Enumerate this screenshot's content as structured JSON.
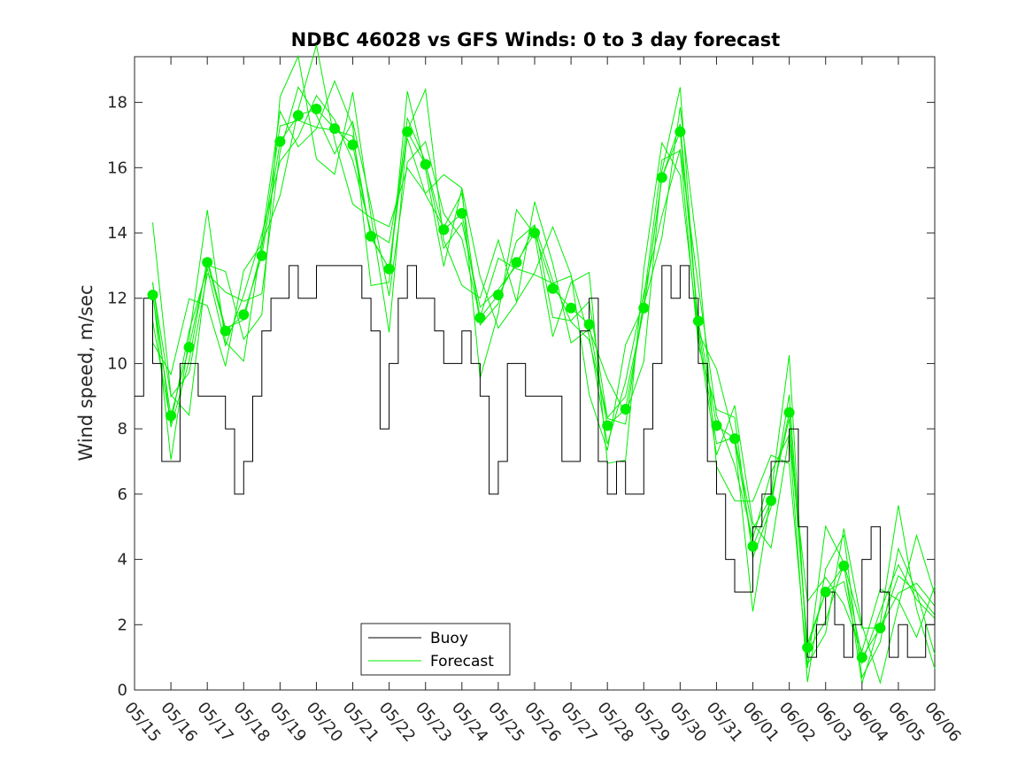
{
  "chart_data": {
    "type": "line",
    "title": "NDBC 46028 vs GFS Winds: 0 to 3 day forecast",
    "xlabel": "",
    "ylabel": "Wind speed, m/sec",
    "xlim": [
      0,
      22
    ],
    "ylim": [
      0,
      19.4
    ],
    "yticks": [
      0,
      2,
      4,
      6,
      8,
      10,
      12,
      14,
      16,
      18
    ],
    "xtick_labels": [
      "05/15",
      "05/16",
      "05/17",
      "05/18",
      "05/19",
      "05/20",
      "05/21",
      "05/22",
      "05/23",
      "05/24",
      "05/25",
      "05/26",
      "05/27",
      "05/28",
      "05/29",
      "05/30",
      "05/31",
      "06/01",
      "06/02",
      "06/03",
      "06/04",
      "06/05",
      "06/06"
    ],
    "grid": false,
    "legend": {
      "placement": "bottom-center",
      "entries": [
        "Buoy",
        "Forecast"
      ]
    },
    "colors": {
      "buoy": "#000000",
      "forecast": "#00ee00"
    },
    "buoy": {
      "name": "Buoy",
      "x": [
        0,
        0.25,
        0.5,
        0.75,
        1,
        1.25,
        1.5,
        1.75,
        2,
        2.25,
        2.5,
        2.75,
        3,
        3.25,
        3.5,
        3.75,
        4,
        4.25,
        4.5,
        4.75,
        5,
        5.25,
        5.5,
        5.75,
        6,
        6.25,
        6.5,
        6.75,
        7,
        7.25,
        7.5,
        7.75,
        8,
        8.25,
        8.5,
        8.75,
        9,
        9.25,
        9.5,
        9.75,
        10,
        10.25,
        10.5,
        10.75,
        11,
        11.25,
        11.5,
        11.75,
        12,
        12.25,
        12.5,
        12.75,
        13,
        13.25,
        13.5,
        13.75,
        14,
        14.25,
        14.5,
        14.75,
        15,
        15.25,
        15.5,
        15.75,
        16,
        16.25,
        16.5,
        16.75,
        17,
        17.25,
        17.5,
        17.75,
        18,
        18.25,
        18.5,
        18.75,
        19,
        19.25,
        19.5,
        19.75,
        20,
        20.25,
        20.5,
        20.75,
        21,
        21.25,
        21.5,
        21.75,
        22
      ],
      "y": [
        9,
        12,
        10,
        7,
        7,
        10,
        10,
        9,
        9,
        9,
        8,
        6,
        7,
        9,
        11,
        12,
        12,
        13,
        12,
        12,
        13,
        13,
        13,
        13,
        13,
        12,
        11,
        8,
        10,
        12,
        13,
        12,
        12,
        11,
        10,
        10,
        11,
        10,
        9,
        6,
        7,
        10,
        10,
        9,
        9,
        9,
        9,
        7,
        7,
        11,
        12,
        7,
        6,
        7,
        6,
        6,
        8,
        10,
        13,
        12,
        13,
        12,
        10,
        7,
        6,
        4,
        3,
        3,
        5,
        6,
        7,
        7,
        8,
        5,
        1,
        2,
        3,
        2,
        1,
        2,
        4,
        5,
        3,
        1,
        2,
        1,
        1,
        2,
        3
      ]
    },
    "forecast_verification": {
      "name": "Forecast",
      "x": [
        0.5,
        1,
        1.5,
        2,
        2.5,
        3,
        3.5,
        4,
        4.5,
        5,
        5.5,
        6,
        6.5,
        7,
        7.5,
        8,
        8.5,
        9,
        9.5,
        10,
        10.5,
        11,
        11.5,
        12,
        12.5,
        13,
        13.5,
        14,
        14.5,
        15,
        15.5,
        16,
        16.5,
        17,
        17.5,
        18,
        18.5,
        19,
        19.5,
        20,
        20.5,
        21,
        21.5,
        22
      ],
      "y": [
        12.1,
        8.4,
        10.5,
        13.1,
        11.0,
        11.5,
        13.3,
        16.8,
        17.6,
        17.8,
        17.2,
        16.7,
        13.9,
        12.9,
        17.1,
        16.1,
        14.1,
        14.6,
        11.4,
        12.1,
        13.1,
        14.0,
        12.3,
        11.7,
        11.2,
        8.1,
        8.6,
        11.7,
        15.7,
        17.1,
        11.3,
        8.1,
        7.7,
        4.4,
        5.8,
        8.5,
        1.3,
        3.0,
        3.8,
        1.0,
        1.9,
        3.5,
        3.0,
        2.3
      ]
    },
    "forecast_markers": {
      "x": [
        0.5,
        1,
        1.5,
        2,
        2.5,
        3,
        3.5,
        4,
        4.5,
        5,
        5.5,
        6,
        6.5,
        7,
        7.5,
        8,
        8.5,
        9,
        9.5,
        10,
        10.5,
        11,
        11.5,
        12,
        12.5,
        13,
        13.5,
        14,
        14.5,
        15,
        15.5,
        16,
        16.5,
        17,
        17.5,
        18,
        18.5,
        19,
        19.5,
        20,
        20.5
      ],
      "y": [
        12.1,
        8.4,
        10.5,
        13.1,
        11.0,
        11.5,
        13.3,
        16.8,
        17.6,
        17.8,
        17.2,
        16.7,
        13.9,
        12.9,
        17.1,
        16.1,
        14.1,
        14.6,
        11.4,
        12.1,
        13.1,
        14.0,
        12.3,
        11.7,
        11.2,
        8.1,
        8.6,
        11.7,
        15.7,
        17.1,
        11.3,
        8.1,
        7.7,
        4.4,
        5.8,
        8.5,
        1.3,
        3.0,
        3.8,
        1.0,
        1.9
      ]
    }
  }
}
